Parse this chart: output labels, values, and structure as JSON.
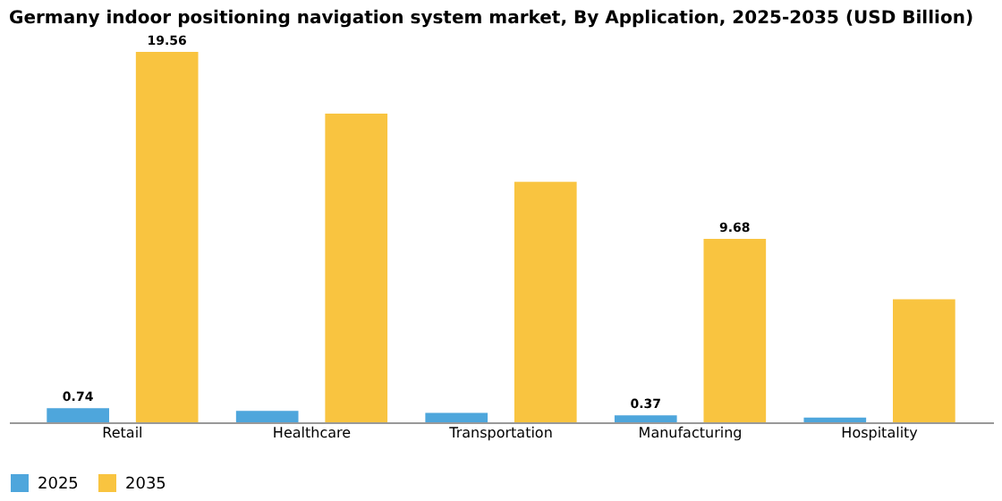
{
  "chart_data": {
    "type": "bar",
    "title": "Germany indoor positioning navigation system market, By Application, 2025-2035 (USD Billion)",
    "categories": [
      "Retail",
      "Healthcare",
      "Transportation",
      "Manufacturing",
      "Hospitality"
    ],
    "series": [
      {
        "name": "2025",
        "color": "#4ea6dc",
        "values": [
          0.74,
          0.6,
          0.5,
          0.37,
          0.25
        ],
        "value_labels": [
          "0.74",
          null,
          null,
          "0.37",
          null
        ]
      },
      {
        "name": "2035",
        "color": "#f9c440",
        "values": [
          19.56,
          16.3,
          12.7,
          9.68,
          6.5
        ],
        "value_labels": [
          "19.56",
          null,
          null,
          "9.68",
          null
        ]
      }
    ],
    "legend": "bottom",
    "grid": false
  }
}
